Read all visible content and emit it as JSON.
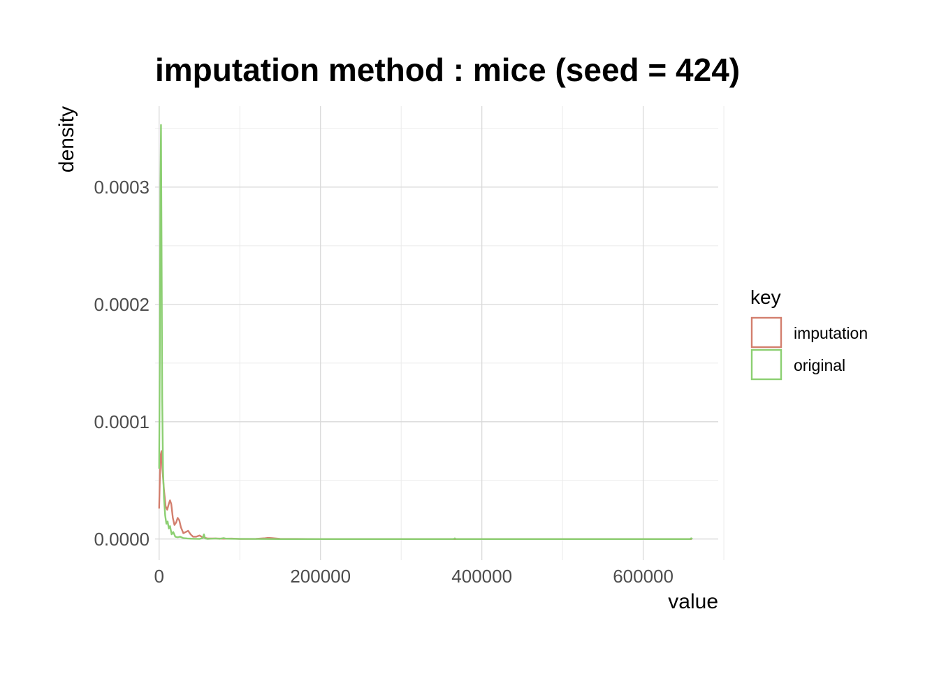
{
  "chart_data": {
    "type": "line",
    "title": "imputation method : mice (seed = 424)",
    "xlabel": "value",
    "ylabel": "density",
    "xlim": [
      -5000,
      693000
    ],
    "ylim": [
      -1.8e-05,
      0.000369
    ],
    "x_ticks": [
      0,
      200000,
      400000,
      600000
    ],
    "x_tick_labels": [
      "0",
      "200000",
      "400000",
      "600000"
    ],
    "y_ticks": [
      0.0,
      0.0001,
      0.0002,
      0.0003
    ],
    "y_tick_labels": [
      "0.0000",
      "0.0001",
      "0.0002",
      "0.0003"
    ],
    "grid": true,
    "legend": {
      "title": "key",
      "position": "right"
    },
    "series": [
      {
        "name": "imputation",
        "color": "#d37f6e",
        "points": [
          [
            0,
            2.6e-05
          ],
          [
            1000,
            5.5e-05
          ],
          [
            2000,
            7.2e-05
          ],
          [
            3000,
            7.5e-05
          ],
          [
            4000,
            6e-05
          ],
          [
            6000,
            4.2e-05
          ],
          [
            8000,
            2.8e-05
          ],
          [
            10000,
            2.5e-05
          ],
          [
            12000,
            3e-05
          ],
          [
            13500,
            3.3e-05
          ],
          [
            15000,
            3e-05
          ],
          [
            17000,
            1.8e-05
          ],
          [
            19000,
            1.2e-05
          ],
          [
            21000,
            1.4e-05
          ],
          [
            23000,
            1.8e-05
          ],
          [
            25000,
            1.6e-05
          ],
          [
            27000,
            1e-05
          ],
          [
            30000,
            5e-06
          ],
          [
            33000,
            6e-06
          ],
          [
            36000,
            7e-06
          ],
          [
            39000,
            4e-06
          ],
          [
            42000,
            2e-06
          ],
          [
            46000,
            2e-06
          ],
          [
            50000,
            3e-06
          ],
          [
            54000,
            1.5e-06
          ],
          [
            60000,
            5e-07
          ],
          [
            70000,
            5e-07
          ],
          [
            80000,
            3e-07
          ],
          [
            90000,
            4e-07
          ],
          [
            100000,
            1e-07
          ],
          [
            120000,
            2e-07
          ],
          [
            130000,
            6e-07
          ],
          [
            135000,
            1e-06
          ],
          [
            140000,
            8e-07
          ],
          [
            150000,
            2e-07
          ],
          [
            170000,
            1e-07
          ],
          [
            200000,
            0.0
          ],
          [
            300000,
            0.0
          ],
          [
            400000,
            0.0
          ],
          [
            500000,
            0.0
          ],
          [
            600000,
            0.0
          ],
          [
            660000,
            0.0
          ]
        ]
      },
      {
        "name": "original",
        "color": "#8ccf72",
        "points": [
          [
            0,
            6e-05
          ],
          [
            800,
            0.00015
          ],
          [
            1600,
            0.0003
          ],
          [
            2300,
            0.000353
          ],
          [
            3000,
            0.00025
          ],
          [
            3800,
            0.00012
          ],
          [
            4800,
            6e-05
          ],
          [
            6000,
            3.5e-05
          ],
          [
            7500,
            2e-05
          ],
          [
            9000,
            1.3e-05
          ],
          [
            10500,
            1.5e-05
          ],
          [
            12000,
            9e-06
          ],
          [
            13500,
            1.1e-05
          ],
          [
            15500,
            4e-06
          ],
          [
            17500,
            6e-06
          ],
          [
            20000,
            2e-06
          ],
          [
            23000,
            1.5e-06
          ],
          [
            26000,
            2e-06
          ],
          [
            30000,
            8e-07
          ],
          [
            35000,
            5e-07
          ],
          [
            40000,
            3e-07
          ],
          [
            45000,
            2e-07
          ],
          [
            50000,
            1e-07
          ],
          [
            54000,
            8e-07
          ],
          [
            55500,
            4e-06
          ],
          [
            57000,
            5e-07
          ],
          [
            60000,
            1e-07
          ],
          [
            70000,
            5e-07
          ],
          [
            75000,
            2e-07
          ],
          [
            80000,
            8e-07
          ],
          [
            83000,
            3e-07
          ],
          [
            100000,
            1e-07
          ],
          [
            150000,
            0.0
          ],
          [
            200000,
            0.0
          ],
          [
            300000,
            0.0
          ],
          [
            365000,
            0.0
          ],
          [
            366500,
            6e-07
          ],
          [
            368000,
            0.0
          ],
          [
            400000,
            0.0
          ],
          [
            500000,
            0.0
          ],
          [
            600000,
            0.0
          ],
          [
            658000,
            0.0
          ],
          [
            659500,
            7e-07
          ],
          [
            661000,
            0.0
          ]
        ]
      }
    ]
  }
}
